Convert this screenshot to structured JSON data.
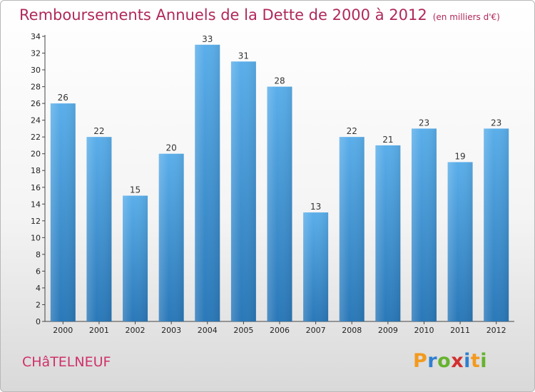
{
  "header": {
    "title": "Remboursements Annuels de la Dette de 2000 à 2012",
    "subtitle": "(en milliers d'€)"
  },
  "footer": {
    "commune": "CHâTELNEUF",
    "logo": "Proxiti"
  },
  "colors": {
    "title": "#b0285a",
    "bar_top": "#5aaeea",
    "bar_bottom": "#2a78b8"
  },
  "chart_data": {
    "type": "bar",
    "title": "Remboursements Annuels de la Dette de 2000 à 2012",
    "subtitle": "(en milliers d'€)",
    "categories": [
      "2000",
      "2001",
      "2002",
      "2003",
      "2004",
      "2005",
      "2006",
      "2007",
      "2008",
      "2009",
      "2010",
      "2011",
      "2012"
    ],
    "values": [
      26,
      22,
      15,
      20,
      33,
      31,
      28,
      13,
      22,
      21,
      23,
      19,
      23
    ],
    "ylim": [
      0,
      34
    ],
    "yticks": [
      0,
      2,
      4,
      6,
      8,
      10,
      12,
      14,
      16,
      18,
      20,
      22,
      24,
      26,
      28,
      30,
      32,
      34
    ],
    "grid": false,
    "legend": "none"
  }
}
